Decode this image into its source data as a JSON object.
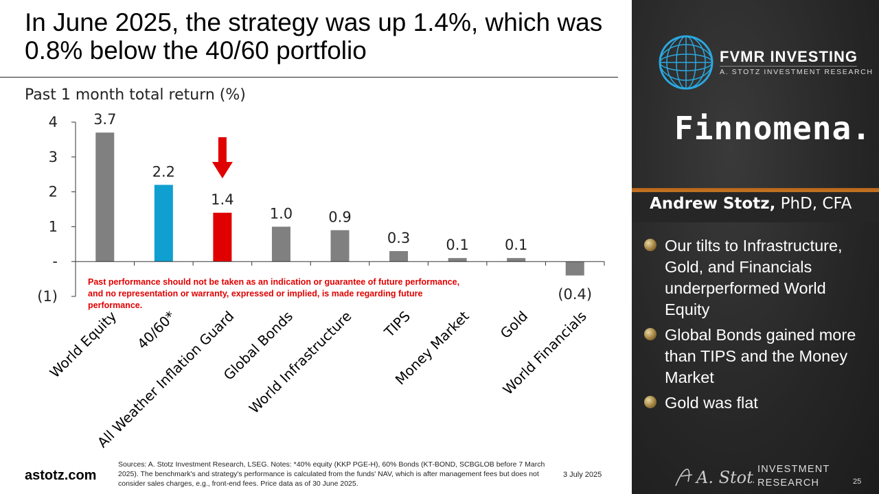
{
  "slide": {
    "title": "In June 2025, the strategy was up 1.4%, which was 0.8% below the 40/60 portfolio",
    "site": "astotz.com",
    "sources": "Sources: A. Stotz Investment Research, LSEG. Notes: *40% equity (KKP PGE-H), 60% Bonds (KT-BOND, SCBGLOB before 7 March 2025). The benchmark's and strategy's performance is calculated from the funds' NAV, which is after management fees but does not consider sales charges, e.g., front-end fees. Price data as of 30 June 2025.",
    "date": "3 July 2025",
    "page_number": "25"
  },
  "panel": {
    "brand_name": "FVMR INVESTING",
    "brand_subtitle": "A. STOTZ INVESTMENT RESEARCH",
    "partner_logo": "Finnomena.",
    "author_name": "Andrew Stotz,",
    "author_credentials": " PhD, CFA",
    "bullets": [
      "Our tilts to Infrastructure, Gold, and Financials underperformed World Equity",
      "Global Bonds gained more than TIPS and the Money Market",
      "Gold was flat"
    ],
    "signature": "A. Stotz",
    "footer_brand_line1": "INVESTMENT",
    "footer_brand_line2": "RESEARCH"
  },
  "chart_data": {
    "type": "bar",
    "title": "Past 1 month total return (%)",
    "categories": [
      "World Equity",
      "40/60*",
      "All Weather Inflation Guard",
      "Global Bonds",
      "World Infrastructure",
      "TIPS",
      "Money Market",
      "Gold",
      "World Financials"
    ],
    "values": [
      3.7,
      2.2,
      1.4,
      1.0,
      0.9,
      0.3,
      0.1,
      0.1,
      -0.4
    ],
    "value_labels": [
      "3.7",
      "2.2",
      "1.4",
      "1.0",
      "0.9",
      "0.3",
      "0.1",
      "0.1",
      "(0.4)"
    ],
    "bar_colors": [
      "#808080",
      "#0f9fd0",
      "#e00000",
      "#808080",
      "#808080",
      "#808080",
      "#808080",
      "#808080",
      "#808080"
    ],
    "ylim": [
      -1,
      4
    ],
    "yticks": [
      4,
      3,
      2,
      1,
      0,
      -1
    ],
    "ytick_labels": [
      "4",
      "3",
      "2",
      "1",
      "-",
      "(1)"
    ],
    "highlight_arrow_category": "All Weather Inflation Guard",
    "arrow_color": "#e00000",
    "disclaimer": "Past performance should not be taken as an indication or guarantee of future performance, and no representation or warranty, expressed or implied, is made regarding future performance.",
    "disclaimer_color": "#e00000",
    "grid": false,
    "legend": "none"
  }
}
